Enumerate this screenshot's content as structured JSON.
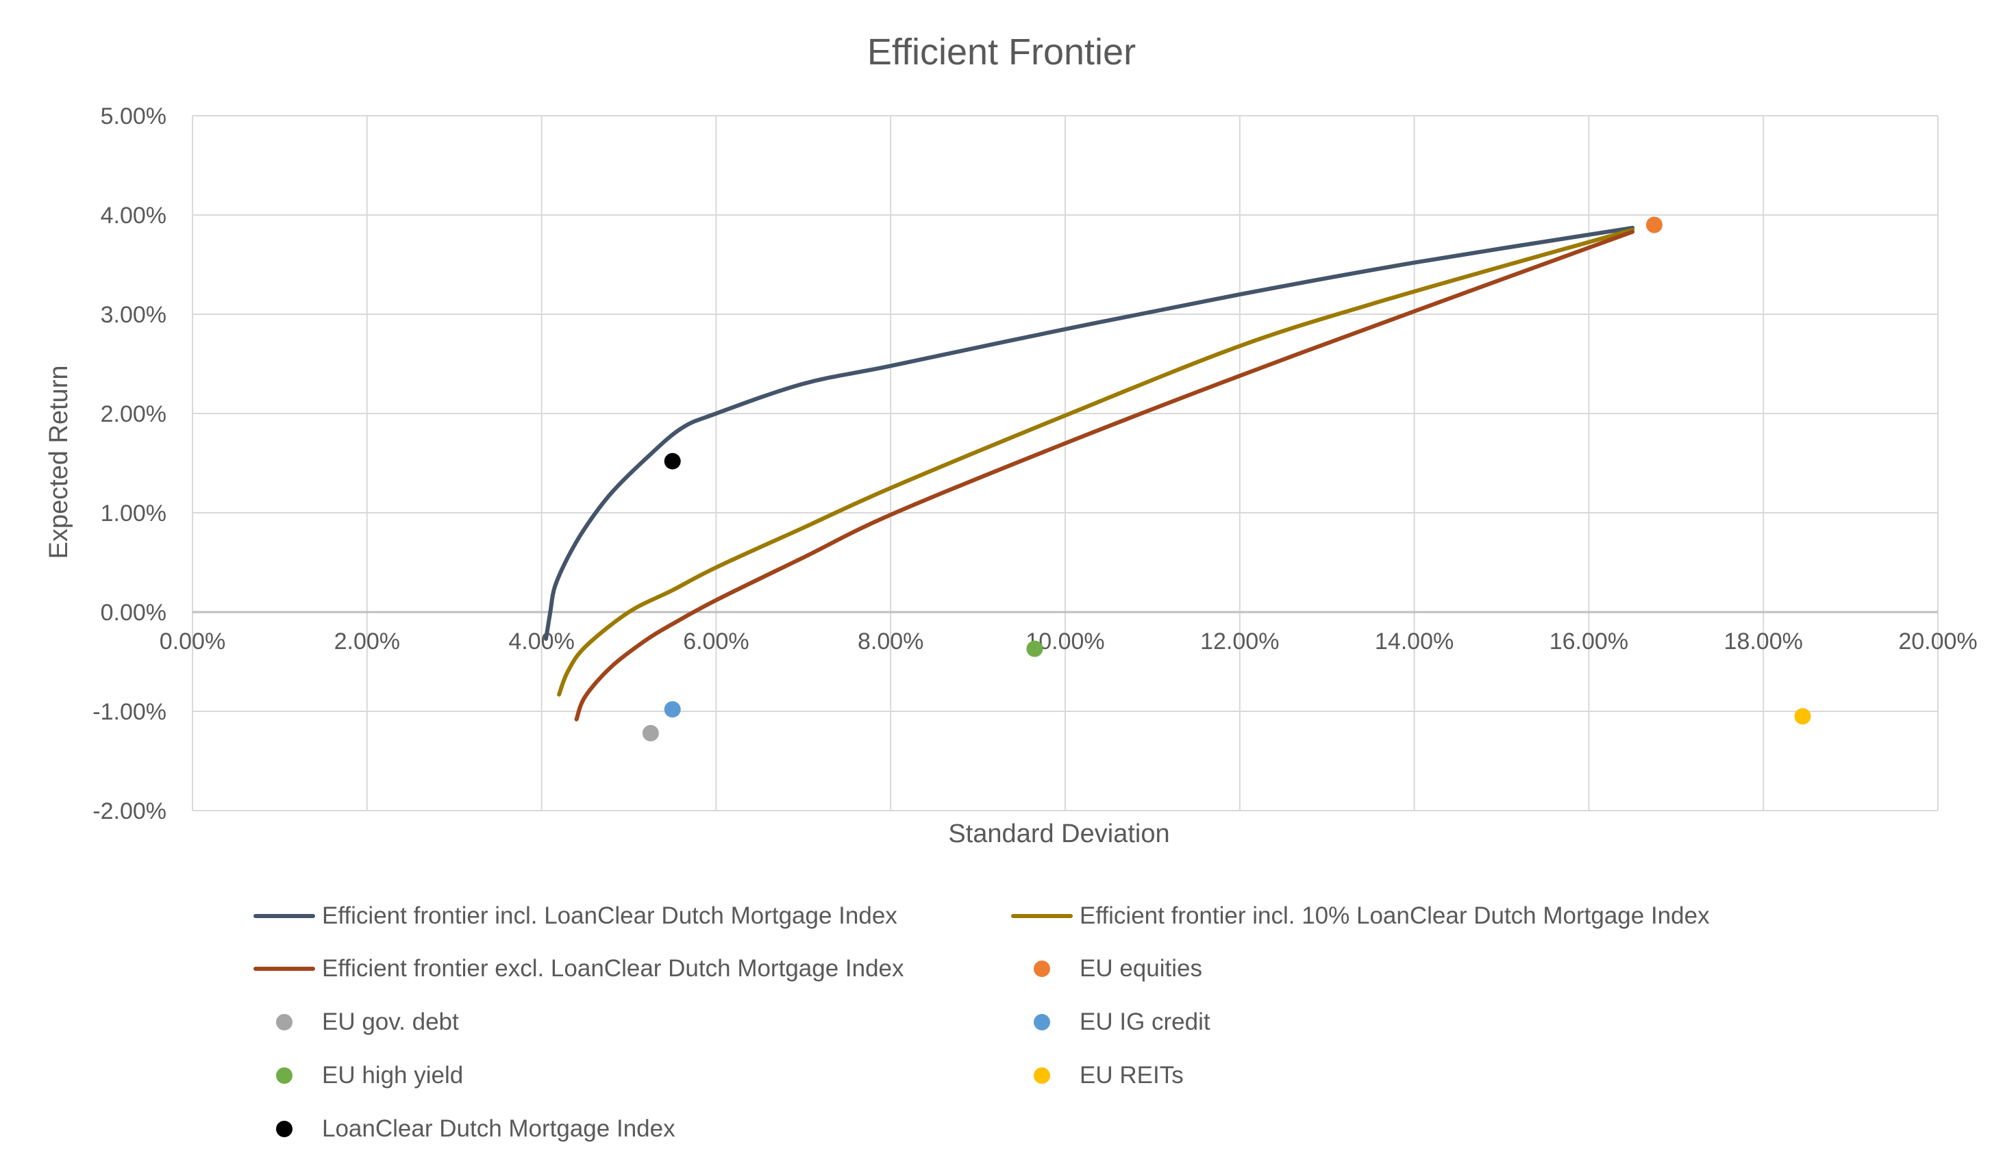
{
  "chart_data": {
    "type": "scatter",
    "title": "Efficient Frontier",
    "xlabel": "Standard Deviation",
    "ylabel": "Expected Return",
    "xlim": [
      0,
      20
    ],
    "ylim": [
      -2,
      5
    ],
    "x_ticks": [
      "0.00%",
      "2.00%",
      "4.00%",
      "6.00%",
      "8.00%",
      "10.00%",
      "12.00%",
      "14.00%",
      "16.00%",
      "18.00%",
      "20.00%"
    ],
    "y_ticks": [
      "-2.00%",
      "-1.00%",
      "0.00%",
      "1.00%",
      "2.00%",
      "3.00%",
      "4.00%",
      "5.00%"
    ],
    "grid": true,
    "legend_position": "bottom",
    "series": [
      {
        "name": "Efficient frontier incl. LoanClear Dutch Mortgage Index",
        "kind": "line",
        "color": "#44546A",
        "points": [
          [
            4.05,
            -0.27
          ],
          [
            4.1,
            0.0
          ],
          [
            4.15,
            0.25
          ],
          [
            4.3,
            0.55
          ],
          [
            4.5,
            0.85
          ],
          [
            4.8,
            1.2
          ],
          [
            5.2,
            1.55
          ],
          [
            5.6,
            1.85
          ],
          [
            6.0,
            2.0
          ],
          [
            7.0,
            2.3
          ],
          [
            8.0,
            2.48
          ],
          [
            10.0,
            2.85
          ],
          [
            12.0,
            3.2
          ],
          [
            14.0,
            3.52
          ],
          [
            16.5,
            3.87
          ]
        ]
      },
      {
        "name": "Efficient frontier incl. 10% LoanClear Dutch Mortgage Index",
        "kind": "line",
        "color": "#9C7A00",
        "points": [
          [
            4.2,
            -0.83
          ],
          [
            4.3,
            -0.6
          ],
          [
            4.5,
            -0.35
          ],
          [
            5.0,
            0.0
          ],
          [
            5.5,
            0.22
          ],
          [
            6.0,
            0.45
          ],
          [
            7.0,
            0.85
          ],
          [
            8.0,
            1.25
          ],
          [
            10.0,
            1.98
          ],
          [
            12.0,
            2.68
          ],
          [
            13.5,
            3.1
          ],
          [
            15.0,
            3.48
          ],
          [
            16.5,
            3.85
          ]
        ]
      },
      {
        "name": "Efficient frontier excl. LoanClear Dutch Mortgage Index",
        "kind": "line",
        "color": "#A0441A",
        "points": [
          [
            4.4,
            -1.08
          ],
          [
            4.5,
            -0.85
          ],
          [
            4.8,
            -0.55
          ],
          [
            5.2,
            -0.28
          ],
          [
            5.5,
            -0.12
          ],
          [
            6.0,
            0.12
          ],
          [
            7.0,
            0.55
          ],
          [
            8.0,
            0.98
          ],
          [
            10.0,
            1.7
          ],
          [
            12.0,
            2.38
          ],
          [
            14.0,
            3.03
          ],
          [
            16.5,
            3.83
          ]
        ]
      },
      {
        "name": "EU equities",
        "kind": "point",
        "color": "#ED7D31",
        "points": [
          [
            16.75,
            3.9
          ]
        ]
      },
      {
        "name": "EU gov. debt",
        "kind": "point",
        "color": "#A5A5A5",
        "points": [
          [
            5.25,
            -1.22
          ]
        ]
      },
      {
        "name": "EU IG credit",
        "kind": "point",
        "color": "#5B9BD5",
        "points": [
          [
            5.5,
            -0.98
          ]
        ]
      },
      {
        "name": "EU high yield",
        "kind": "point",
        "color": "#70AD47",
        "points": [
          [
            9.65,
            -0.37
          ]
        ]
      },
      {
        "name": "EU REITs",
        "kind": "point",
        "color": "#FFC000",
        "points": [
          [
            18.45,
            -1.05
          ]
        ]
      },
      {
        "name": "LoanClear Dutch Mortgage Index",
        "kind": "point",
        "color": "#000000",
        "points": [
          [
            5.5,
            1.52
          ]
        ]
      }
    ]
  }
}
